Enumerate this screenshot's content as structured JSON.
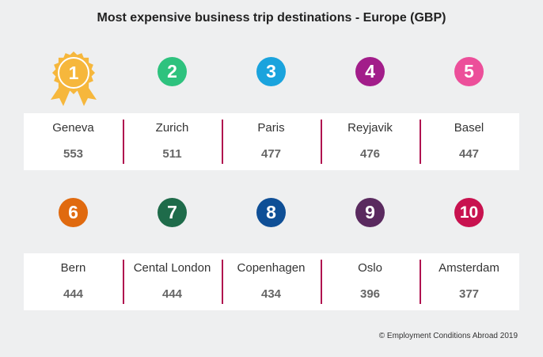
{
  "chart_data": {
    "type": "table",
    "title": "Most expensive business trip destinations - Europe (GBP)",
    "entries": [
      {
        "rank": "1",
        "city": "Geneva",
        "value": 553,
        "color": "#f6b73c"
      },
      {
        "rank": "2",
        "city": "Zurich",
        "value": 511,
        "color": "#2ec27e"
      },
      {
        "rank": "3",
        "city": "Paris",
        "value": 477,
        "color": "#1aa3dd"
      },
      {
        "rank": "4",
        "city": "Reyjavik",
        "value": 476,
        "color": "#a21d8a"
      },
      {
        "rank": "5",
        "city": "Basel",
        "value": 447,
        "color": "#ec4f9a"
      },
      {
        "rank": "6",
        "city": "Bern",
        "value": 444,
        "color": "#e06a0f"
      },
      {
        "rank": "7",
        "city": "Cental London",
        "value": 444,
        "color": "#1e6b4a"
      },
      {
        "rank": "8",
        "city": "Copenhagen",
        "value": 434,
        "color": "#0f4f96"
      },
      {
        "rank": "9",
        "city": "Oslo",
        "value": 396,
        "color": "#5a2a5f"
      },
      {
        "rank": "10",
        "city": "Amsterdam",
        "value": 377,
        "color": "#c8124f"
      }
    ],
    "divider_color": "#b0124f"
  },
  "footer": "© Employment Conditions Abroad 2019"
}
